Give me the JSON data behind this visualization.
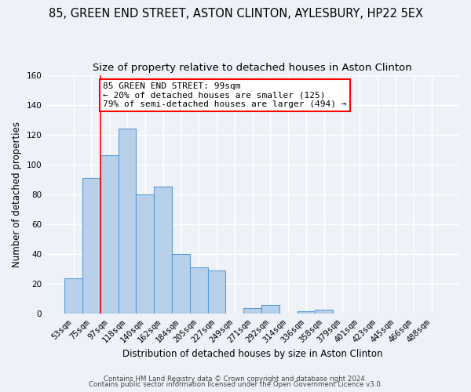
{
  "title1": "85, GREEN END STREET, ASTON CLINTON, AYLESBURY, HP22 5EX",
  "title2": "Size of property relative to detached houses in Aston Clinton",
  "xlabel": "Distribution of detached houses by size in Aston Clinton",
  "ylabel": "Number of detached properties",
  "bar_labels": [
    "53sqm",
    "75sqm",
    "97sqm",
    "118sqm",
    "140sqm",
    "162sqm",
    "184sqm",
    "205sqm",
    "227sqm",
    "249sqm",
    "271sqm",
    "292sqm",
    "314sqm",
    "336sqm",
    "358sqm",
    "379sqm",
    "401sqm",
    "423sqm",
    "445sqm",
    "466sqm",
    "488sqm"
  ],
  "bar_values": [
    24,
    91,
    106,
    124,
    80,
    85,
    40,
    31,
    29,
    0,
    4,
    6,
    0,
    2,
    3,
    0,
    0,
    0,
    0,
    0,
    0
  ],
  "bar_color": "#b8d0ea",
  "bar_edge_color": "#5b9bd5",
  "background_color": "#eef2f8",
  "grid_color": "#ffffff",
  "ylim": [
    0,
    160
  ],
  "yticks": [
    0,
    20,
    40,
    60,
    80,
    100,
    120,
    140,
    160
  ],
  "property_label": "85 GREEN END STREET: 99sqm",
  "annotation_line1": "← 20% of detached houses are smaller (125)",
  "annotation_line2": "79% of semi-detached houses are larger (494) →",
  "red_line_bar_index": 2,
  "footer1": "Contains HM Land Registry data © Crown copyright and database right 2024.",
  "footer2": "Contains public sector information licensed under the Open Government Licence v3.0.",
  "title1_fontsize": 10.5,
  "title2_fontsize": 9.5,
  "tick_fontsize": 7.5,
  "ylabel_fontsize": 8.5,
  "xlabel_fontsize": 8.5,
  "annotation_fontsize": 8,
  "footer_fontsize": 6.2
}
